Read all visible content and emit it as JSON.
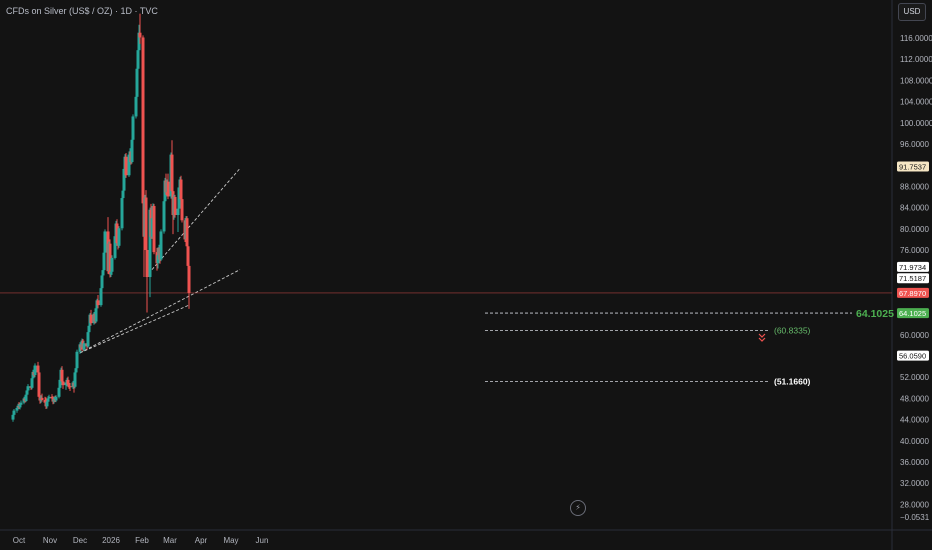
{
  "header": {
    "title": "CFDs on Silver (US$ / OZ) · 1D · TVC"
  },
  "toolbar": {
    "currency_label": "USD",
    "replay_glyph": "⚡"
  },
  "colors": {
    "up": "#26a69a",
    "down": "#ef5350",
    "background": "#131313",
    "grid": "#1e1e1e",
    "axis_text": "#b2b5be"
  },
  "chart_data": {
    "type": "candlestick",
    "title": "CFDs on Silver (US$ / OZ) · 1D · TVC",
    "xlabel": "",
    "ylabel": "",
    "currency": "USD",
    "ylim": [
      27,
      121
    ],
    "x_tick_labels": [
      "Oct",
      "Nov",
      "Dec",
      "2026",
      "Feb",
      "Mar",
      "Apr",
      "May",
      "Jun"
    ],
    "y_tick_labels": [
      "116.0000",
      "112.0000",
      "108.0000",
      "104.0000",
      "100.0000",
      "96.0000",
      "88.0000",
      "84.0000",
      "80.0000",
      "76.0000",
      "60.0000",
      "52.0000",
      "48.0000",
      "44.0000",
      "40.0000",
      "36.0000",
      "32.0000",
      "28.0000"
    ],
    "bottom_axis_label": "−0.0531",
    "price_labels": [
      {
        "label": "91.7537",
        "value": 91.75,
        "style": "beige"
      },
      {
        "label": "71.9734",
        "value": 71.97,
        "style": "white"
      },
      {
        "label": "71.5187",
        "value": 71.52,
        "style": "white"
      },
      {
        "label": "67.8970",
        "value": 67.9,
        "style": "red"
      },
      {
        "label": "64.1025",
        "value": 64.1,
        "style": "green"
      },
      {
        "label": "56.0590",
        "value": 56.06,
        "style": "white"
      }
    ],
    "current_price": 67.9,
    "annotations": {
      "level_main": {
        "label": "64.1025",
        "value": 64.1
      },
      "level_target1": {
        "label": "(60.8335)",
        "value": 60.83
      },
      "level_target2": {
        "label": "(51.1660)",
        "value": 51.17
      }
    },
    "trendlines": [
      {
        "from": {
          "date": "2025-12-01",
          "price": 56.6
        },
        "to": {
          "date": "2026-03-20",
          "price": 65.6
        }
      },
      {
        "from": {
          "date": "2025-12-01",
          "price": 56.6
        },
        "to": {
          "date": "2026-05-10",
          "price": 72.3
        }
      },
      {
        "from": {
          "date": "2026-02-11",
          "price": 72.3
        },
        "to": {
          "date": "2026-05-10",
          "price": 91.4
        }
      }
    ],
    "ohlc": [
      {
        "date": "2025-09-25",
        "o": 44.0,
        "h": 45.2,
        "l": 43.6,
        "c": 44.9
      },
      {
        "date": "2025-09-26",
        "o": 44.9,
        "h": 46.0,
        "l": 44.5,
        "c": 45.7
      },
      {
        "date": "2025-09-29",
        "o": 45.7,
        "h": 46.6,
        "l": 45.3,
        "c": 46.2
      },
      {
        "date": "2025-09-30",
        "o": 46.2,
        "h": 47.0,
        "l": 45.8,
        "c": 46.6
      },
      {
        "date": "2025-10-01",
        "o": 46.6,
        "h": 47.3,
        "l": 46.0,
        "c": 46.3
      },
      {
        "date": "2025-10-02",
        "o": 46.3,
        "h": 47.1,
        "l": 45.9,
        "c": 46.8
      },
      {
        "date": "2025-10-03",
        "o": 46.8,
        "h": 47.6,
        "l": 46.4,
        "c": 47.2
      },
      {
        "date": "2025-10-06",
        "o": 47.2,
        "h": 48.3,
        "l": 46.9,
        "c": 48.0
      },
      {
        "date": "2025-10-07",
        "o": 48.0,
        "h": 48.6,
        "l": 47.2,
        "c": 47.5
      },
      {
        "date": "2025-10-08",
        "o": 47.5,
        "h": 48.9,
        "l": 47.3,
        "c": 48.7
      },
      {
        "date": "2025-10-09",
        "o": 48.7,
        "h": 49.9,
        "l": 48.3,
        "c": 49.5
      },
      {
        "date": "2025-10-10",
        "o": 49.5,
        "h": 50.7,
        "l": 49.0,
        "c": 50.3
      },
      {
        "date": "2025-10-13",
        "o": 50.3,
        "h": 51.2,
        "l": 49.6,
        "c": 50.0
      },
      {
        "date": "2025-10-14",
        "o": 50.0,
        "h": 52.2,
        "l": 49.7,
        "c": 51.8
      },
      {
        "date": "2025-10-15",
        "o": 51.8,
        "h": 53.4,
        "l": 51.5,
        "c": 53.0
      },
      {
        "date": "2025-10-16",
        "o": 53.0,
        "h": 54.0,
        "l": 52.1,
        "c": 52.4
      },
      {
        "date": "2025-10-17",
        "o": 52.4,
        "h": 54.6,
        "l": 52.0,
        "c": 54.2
      },
      {
        "date": "2025-10-20",
        "o": 54.2,
        "h": 54.9,
        "l": 52.5,
        "c": 52.9
      },
      {
        "date": "2025-10-21",
        "o": 52.9,
        "h": 53.2,
        "l": 47.8,
        "c": 48.3
      },
      {
        "date": "2025-10-22",
        "o": 48.3,
        "h": 48.8,
        "l": 47.0,
        "c": 47.6
      },
      {
        "date": "2025-10-23",
        "o": 47.6,
        "h": 48.6,
        "l": 47.1,
        "c": 48.1
      },
      {
        "date": "2025-10-24",
        "o": 48.1,
        "h": 48.9,
        "l": 47.4,
        "c": 47.7
      },
      {
        "date": "2025-10-27",
        "o": 47.7,
        "h": 48.3,
        "l": 46.8,
        "c": 47.2
      },
      {
        "date": "2025-10-28",
        "o": 47.2,
        "h": 48.2,
        "l": 46.0,
        "c": 46.5
      },
      {
        "date": "2025-10-29",
        "o": 46.5,
        "h": 47.7,
        "l": 46.1,
        "c": 47.4
      },
      {
        "date": "2025-10-30",
        "o": 47.4,
        "h": 48.4,
        "l": 47.0,
        "c": 48.0
      },
      {
        "date": "2025-10-31",
        "o": 48.0,
        "h": 48.7,
        "l": 47.4,
        "c": 48.3
      },
      {
        "date": "2025-11-03",
        "o": 48.3,
        "h": 48.8,
        "l": 47.5,
        "c": 48.0
      },
      {
        "date": "2025-11-04",
        "o": 48.0,
        "h": 48.4,
        "l": 46.9,
        "c": 47.4
      },
      {
        "date": "2025-11-05",
        "o": 47.4,
        "h": 48.3,
        "l": 47.0,
        "c": 47.9
      },
      {
        "date": "2025-11-06",
        "o": 47.9,
        "h": 48.5,
        "l": 47.3,
        "c": 47.6
      },
      {
        "date": "2025-11-07",
        "o": 47.6,
        "h": 48.6,
        "l": 47.3,
        "c": 48.3
      },
      {
        "date": "2025-11-10",
        "o": 48.3,
        "h": 50.3,
        "l": 48.0,
        "c": 50.0
      },
      {
        "date": "2025-11-11",
        "o": 50.0,
        "h": 51.9,
        "l": 49.6,
        "c": 51.5
      },
      {
        "date": "2025-11-12",
        "o": 51.5,
        "h": 53.8,
        "l": 51.0,
        "c": 53.4
      },
      {
        "date": "2025-11-13",
        "o": 53.4,
        "h": 54.1,
        "l": 50.8,
        "c": 51.2
      },
      {
        "date": "2025-11-14",
        "o": 51.2,
        "h": 51.8,
        "l": 49.8,
        "c": 50.5
      },
      {
        "date": "2025-11-17",
        "o": 50.5,
        "h": 51.4,
        "l": 49.6,
        "c": 51.0
      },
      {
        "date": "2025-11-18",
        "o": 51.0,
        "h": 51.9,
        "l": 50.3,
        "c": 51.5
      },
      {
        "date": "2025-11-19",
        "o": 51.5,
        "h": 52.1,
        "l": 50.1,
        "c": 50.6
      },
      {
        "date": "2025-11-20",
        "o": 50.6,
        "h": 51.3,
        "l": 49.8,
        "c": 50.3
      },
      {
        "date": "2025-11-21",
        "o": 50.3,
        "h": 50.9,
        "l": 49.4,
        "c": 50.1
      },
      {
        "date": "2025-11-24",
        "o": 50.1,
        "h": 51.3,
        "l": 49.8,
        "c": 51.0
      },
      {
        "date": "2025-11-25",
        "o": 51.0,
        "h": 51.8,
        "l": 49.1,
        "c": 50.2
      },
      {
        "date": "2025-11-26",
        "o": 50.2,
        "h": 53.2,
        "l": 49.9,
        "c": 52.9
      },
      {
        "date": "2025-11-27",
        "o": 52.9,
        "h": 54.1,
        "l": 52.4,
        "c": 53.7
      },
      {
        "date": "2025-11-28",
        "o": 53.7,
        "h": 57.2,
        "l": 53.3,
        "c": 56.8
      },
      {
        "date": "2025-12-01",
        "o": 56.8,
        "h": 58.6,
        "l": 56.4,
        "c": 58.2
      },
      {
        "date": "2025-12-02",
        "o": 58.2,
        "h": 58.9,
        "l": 57.0,
        "c": 57.6
      },
      {
        "date": "2025-12-03",
        "o": 57.6,
        "h": 59.3,
        "l": 57.3,
        "c": 58.9
      },
      {
        "date": "2025-12-04",
        "o": 58.9,
        "h": 59.2,
        "l": 56.9,
        "c": 57.2
      },
      {
        "date": "2025-12-05",
        "o": 57.2,
        "h": 58.8,
        "l": 56.9,
        "c": 58.4
      },
      {
        "date": "2025-12-08",
        "o": 58.4,
        "h": 59.0,
        "l": 57.2,
        "c": 57.8
      },
      {
        "date": "2025-12-09",
        "o": 57.8,
        "h": 60.8,
        "l": 57.6,
        "c": 60.5
      },
      {
        "date": "2025-12-10",
        "o": 60.5,
        "h": 62.0,
        "l": 60.1,
        "c": 61.7
      },
      {
        "date": "2025-12-11",
        "o": 61.7,
        "h": 64.1,
        "l": 61.2,
        "c": 63.8
      },
      {
        "date": "2025-12-12",
        "o": 63.8,
        "h": 64.7,
        "l": 61.8,
        "c": 62.2
      },
      {
        "date": "2025-12-15",
        "o": 62.2,
        "h": 64.3,
        "l": 61.9,
        "c": 64.0
      },
      {
        "date": "2025-12-16",
        "o": 64.0,
        "h": 64.6,
        "l": 62.1,
        "c": 62.5
      },
      {
        "date": "2025-12-17",
        "o": 62.5,
        "h": 65.3,
        "l": 62.2,
        "c": 65.0
      },
      {
        "date": "2025-12-18",
        "o": 65.0,
        "h": 66.8,
        "l": 64.6,
        "c": 66.5
      },
      {
        "date": "2025-12-19",
        "o": 66.5,
        "h": 67.5,
        "l": 65.0,
        "c": 65.6
      },
      {
        "date": "2025-12-22",
        "o": 65.6,
        "h": 69.1,
        "l": 65.3,
        "c": 68.8
      },
      {
        "date": "2025-12-23",
        "o": 68.8,
        "h": 71.6,
        "l": 68.3,
        "c": 71.2
      },
      {
        "date": "2025-12-24",
        "o": 71.2,
        "h": 72.6,
        "l": 70.6,
        "c": 72.2
      },
      {
        "date": "2025-12-25",
        "o": 72.2,
        "h": 75.8,
        "l": 71.9,
        "c": 75.5
      },
      {
        "date": "2025-12-26",
        "o": 75.5,
        "h": 79.9,
        "l": 75.1,
        "c": 79.5
      },
      {
        "date": "2025-12-29",
        "o": 79.5,
        "h": 82.2,
        "l": 71.5,
        "c": 72.0
      },
      {
        "date": "2025-12-30",
        "o": 72.0,
        "h": 77.6,
        "l": 71.6,
        "c": 77.2
      },
      {
        "date": "2025-12-31",
        "o": 77.2,
        "h": 78.0,
        "l": 70.8,
        "c": 71.4
      },
      {
        "date": "2026-01-01",
        "o": 71.4,
        "h": 72.3,
        "l": 70.9,
        "c": 71.9
      },
      {
        "date": "2026-01-02",
        "o": 71.9,
        "h": 75.0,
        "l": 71.3,
        "c": 74.5
      },
      {
        "date": "2026-01-05",
        "o": 74.5,
        "h": 79.0,
        "l": 74.2,
        "c": 78.6
      },
      {
        "date": "2026-01-06",
        "o": 78.6,
        "h": 81.5,
        "l": 78.2,
        "c": 81.0
      },
      {
        "date": "2026-01-07",
        "o": 81.0,
        "h": 81.8,
        "l": 76.8,
        "c": 77.3
      },
      {
        "date": "2026-01-08",
        "o": 77.3,
        "h": 78.2,
        "l": 76.1,
        "c": 76.8
      },
      {
        "date": "2026-01-09",
        "o": 76.8,
        "h": 80.5,
        "l": 76.4,
        "c": 80.1
      },
      {
        "date": "2026-01-12",
        "o": 80.1,
        "h": 86.2,
        "l": 79.7,
        "c": 85.8
      },
      {
        "date": "2026-01-13",
        "o": 85.8,
        "h": 87.7,
        "l": 84.8,
        "c": 87.2
      },
      {
        "date": "2026-01-14",
        "o": 87.2,
        "h": 91.8,
        "l": 86.8,
        "c": 91.3
      },
      {
        "date": "2026-01-15",
        "o": 91.3,
        "h": 94.1,
        "l": 88.2,
        "c": 93.6
      },
      {
        "date": "2026-01-16",
        "o": 93.6,
        "h": 94.3,
        "l": 89.6,
        "c": 90.1
      },
      {
        "date": "2026-01-19",
        "o": 90.1,
        "h": 94.5,
        "l": 89.8,
        "c": 94.0
      },
      {
        "date": "2026-01-20",
        "o": 94.0,
        "h": 95.2,
        "l": 92.2,
        "c": 94.6
      },
      {
        "date": "2026-01-21",
        "o": 94.6,
        "h": 95.0,
        "l": 92.1,
        "c": 92.6
      },
      {
        "date": "2026-01-22",
        "o": 92.6,
        "h": 97.2,
        "l": 92.3,
        "c": 96.8
      },
      {
        "date": "2026-01-23",
        "o": 96.8,
        "h": 101.6,
        "l": 96.4,
        "c": 101.2
      },
      {
        "date": "2026-01-26",
        "o": 101.2,
        "h": 105.4,
        "l": 100.8,
        "c": 104.9
      },
      {
        "date": "2026-01-27",
        "o": 104.9,
        "h": 110.6,
        "l": 104.5,
        "c": 110.2
      },
      {
        "date": "2026-01-28",
        "o": 110.2,
        "h": 114.1,
        "l": 109.8,
        "c": 113.7
      },
      {
        "date": "2026-01-29",
        "o": 113.7,
        "h": 118.5,
        "l": 112.2,
        "c": 117.0
      },
      {
        "date": "2026-01-30",
        "o": 117.0,
        "h": 120.6,
        "l": 114.9,
        "c": 116.1
      },
      {
        "date": "2026-02-02",
        "o": 116.1,
        "h": 116.5,
        "l": 84.3,
        "c": 84.8
      },
      {
        "date": "2026-02-03",
        "o": 84.8,
        "h": 87.2,
        "l": 70.9,
        "c": 78.5
      },
      {
        "date": "2026-02-04",
        "o": 78.5,
        "h": 86.4,
        "l": 78.1,
        "c": 85.9
      },
      {
        "date": "2026-02-05",
        "o": 85.9,
        "h": 87.3,
        "l": 75.2,
        "c": 76.0
      },
      {
        "date": "2026-02-06",
        "o": 76.0,
        "h": 78.0,
        "l": 64.2,
        "c": 70.9
      },
      {
        "date": "2026-02-09",
        "o": 70.9,
        "h": 84.0,
        "l": 67.1,
        "c": 83.6
      },
      {
        "date": "2026-02-10",
        "o": 83.6,
        "h": 84.7,
        "l": 78.1,
        "c": 78.5
      },
      {
        "date": "2026-02-11",
        "o": 78.5,
        "h": 82.5,
        "l": 78.1,
        "c": 82.0
      },
      {
        "date": "2026-02-12",
        "o": 82.0,
        "h": 84.8,
        "l": 81.1,
        "c": 84.3
      },
      {
        "date": "2026-02-13",
        "o": 84.3,
        "h": 84.7,
        "l": 75.2,
        "c": 75.6
      },
      {
        "date": "2026-02-16",
        "o": 75.6,
        "h": 76.4,
        "l": 72.1,
        "c": 73.5
      },
      {
        "date": "2026-02-17",
        "o": 73.5,
        "h": 75.8,
        "l": 72.5,
        "c": 75.0
      },
      {
        "date": "2026-02-18",
        "o": 75.0,
        "h": 77.0,
        "l": 74.6,
        "c": 76.5
      },
      {
        "date": "2026-02-19",
        "o": 76.5,
        "h": 79.2,
        "l": 73.4,
        "c": 74.2
      },
      {
        "date": "2026-02-20",
        "o": 74.2,
        "h": 79.9,
        "l": 73.9,
        "c": 79.5
      },
      {
        "date": "2026-02-23",
        "o": 79.5,
        "h": 85.6,
        "l": 79.1,
        "c": 85.2
      },
      {
        "date": "2026-02-24",
        "o": 85.2,
        "h": 89.6,
        "l": 84.8,
        "c": 89.1
      },
      {
        "date": "2026-02-25",
        "o": 89.1,
        "h": 90.4,
        "l": 86.4,
        "c": 86.9
      },
      {
        "date": "2026-02-26",
        "o": 86.9,
        "h": 89.3,
        "l": 86.4,
        "c": 88.9
      },
      {
        "date": "2026-02-27",
        "o": 88.9,
        "h": 90.4,
        "l": 85.6,
        "c": 86.1
      },
      {
        "date": "2026-03-02",
        "o": 86.1,
        "h": 94.4,
        "l": 85.7,
        "c": 94.0
      },
      {
        "date": "2026-03-03",
        "o": 94.0,
        "h": 96.7,
        "l": 86.6,
        "c": 87.1
      },
      {
        "date": "2026-03-04",
        "o": 87.1,
        "h": 87.5,
        "l": 79.0,
        "c": 82.6
      },
      {
        "date": "2026-03-05",
        "o": 82.6,
        "h": 86.5,
        "l": 81.7,
        "c": 86.0
      },
      {
        "date": "2026-03-06",
        "o": 86.0,
        "h": 86.4,
        "l": 82.1,
        "c": 82.6
      },
      {
        "date": "2026-03-09",
        "o": 82.6,
        "h": 84.2,
        "l": 79.4,
        "c": 83.8
      },
      {
        "date": "2026-03-10",
        "o": 83.8,
        "h": 88.3,
        "l": 83.4,
        "c": 87.8
      },
      {
        "date": "2026-03-11",
        "o": 87.8,
        "h": 89.8,
        "l": 86.9,
        "c": 89.3
      },
      {
        "date": "2026-03-12",
        "o": 89.3,
        "h": 90.0,
        "l": 85.1,
        "c": 85.6
      },
      {
        "date": "2026-03-13",
        "o": 85.6,
        "h": 86.0,
        "l": 81.2,
        "c": 81.6
      },
      {
        "date": "2026-03-16",
        "o": 81.6,
        "h": 82.0,
        "l": 77.5,
        "c": 78.0
      },
      {
        "date": "2026-03-17",
        "o": 78.0,
        "h": 82.4,
        "l": 77.6,
        "c": 82.0
      },
      {
        "date": "2026-03-18",
        "o": 82.0,
        "h": 82.4,
        "l": 76.2,
        "c": 76.7
      },
      {
        "date": "2026-03-19",
        "o": 76.7,
        "h": 77.1,
        "l": 72.6,
        "c": 73.0
      },
      {
        "date": "2026-03-20",
        "o": 73.0,
        "h": 73.4,
        "l": 64.9,
        "c": 67.9
      }
    ]
  }
}
